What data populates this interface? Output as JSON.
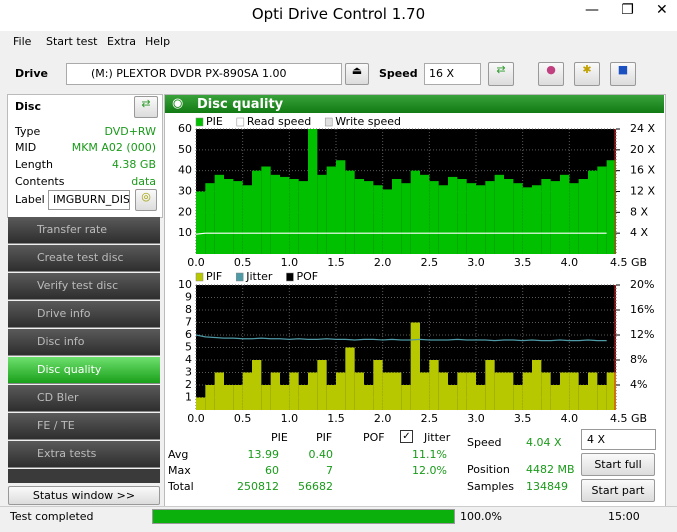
{
  "window": {
    "title": "Opti Drive Control 1.70"
  },
  "menu": [
    "File",
    "Start test",
    "Extra",
    "Help"
  ],
  "toolbar": {
    "drive_label": "Drive",
    "drive": "(M:)  PLEXTOR DVDR   PX-890SA 1.00",
    "speed_label": "Speed",
    "speed": "16 X"
  },
  "disc": {
    "title": "Disc",
    "rows": [
      {
        "name": "Type",
        "value": "DVD+RW"
      },
      {
        "name": "MID",
        "value": "MKM A02 (000)"
      },
      {
        "name": "Length",
        "value": "4.38 GB"
      },
      {
        "name": "Contents",
        "value": "data"
      }
    ],
    "label_name": "Label",
    "label_value": "IMGBURN_DIS"
  },
  "nav": [
    "Transfer rate",
    "Create test disc",
    "Verify test disc",
    "Drive info",
    "Disc info",
    "Disc quality",
    "CD Bler",
    "FE / TE",
    "Extra tests"
  ],
  "status_window": "Status window >>",
  "panel": {
    "title": "Disc quality",
    "charts": [
      {
        "type": "bar",
        "xlim": [
          0,
          4.5
        ],
        "xticks": [
          {
            "value": 0,
            "label": "0.0"
          },
          0.5,
          {
            "value": 1,
            "label": "1.0"
          },
          1.5,
          {
            "value": 2,
            "label": "2.0"
          },
          2.5,
          {
            "value": 3,
            "label": "3.0"
          },
          3.5,
          {
            "value": 4,
            "label": "4.0"
          },
          {
            "value": 4.5,
            "label": "4.5 GB"
          }
        ],
        "ylim": [
          0,
          60
        ],
        "yticks": [
          10,
          20,
          30,
          40,
          50,
          60
        ],
        "y2lim": [
          0,
          24
        ],
        "y2ticks": [
          {
            "value": 4,
            "label": "4 X"
          },
          {
            "value": 8,
            "label": "8 X"
          },
          {
            "value": 12,
            "label": "12 X"
          },
          {
            "value": 16,
            "label": "16 X"
          },
          {
            "value": 20,
            "label": "20 X"
          },
          {
            "value": 24,
            "label": "24 X"
          }
        ],
        "grid": true,
        "x": [
          0.0,
          0.1,
          0.2,
          0.3,
          0.4,
          0.5,
          0.6,
          0.7,
          0.8,
          0.9,
          1.0,
          1.1,
          1.2,
          1.3,
          1.4,
          1.5,
          1.6,
          1.7,
          1.8,
          1.9,
          2.0,
          2.1,
          2.2,
          2.3,
          2.4,
          2.5,
          2.6,
          2.7,
          2.8,
          2.9,
          3.0,
          3.1,
          3.2,
          3.3,
          3.4,
          3.5,
          3.6,
          3.7,
          3.8,
          3.9,
          4.0,
          4.1,
          4.2,
          4.3,
          4.4
        ],
        "series": [
          {
            "name": "PIE",
            "color": "#00c000",
            "kind": "bar",
            "values": [
              30,
              34,
              38,
              36,
              35,
              33,
              40,
              42,
              38,
              37,
              36,
              35,
              60,
              38,
              42,
              45,
              40,
              36,
              35,
              33,
              31,
              36,
              34,
              40,
              38,
              35,
              33,
              37,
              36,
              34,
              33,
              35,
              38,
              36,
              34,
              32,
              33,
              36,
              35,
              38,
              34,
              36,
              40,
              42,
              45
            ]
          },
          {
            "name": "Read speed",
            "color": "#ffffff",
            "kind": "line",
            "axis": "y2",
            "values": [
              3.8,
              4,
              4,
              4,
              4,
              4,
              4,
              4,
              4,
              4,
              4,
              4,
              4,
              4,
              4,
              4,
              4,
              4,
              4,
              4,
              4,
              4,
              4,
              4,
              4,
              4,
              4,
              4,
              4,
              4,
              4,
              4,
              4,
              4,
              4,
              4,
              4,
              4,
              4,
              4,
              4,
              4,
              4,
              4,
              4
            ]
          },
          {
            "name": "Write speed",
            "color": "#e0e0e0",
            "kind": "line",
            "axis": "y2",
            "values": [
              null,
              null,
              null,
              null,
              null,
              null,
              null,
              null,
              null,
              null,
              null,
              null,
              null,
              null,
              null,
              null,
              null,
              null,
              null,
              null,
              null,
              null,
              null,
              null,
              null,
              null,
              null,
              null,
              null,
              null,
              null,
              null,
              null,
              null,
              null,
              null,
              null,
              null,
              null,
              null,
              null,
              null,
              null,
              null,
              null
            ]
          }
        ]
      },
      {
        "type": "bar",
        "xlim": [
          0,
          4.5
        ],
        "xticks": [
          {
            "value": 0,
            "label": "0.0"
          },
          0.5,
          {
            "value": 1,
            "label": "1.0"
          },
          1.5,
          {
            "value": 2,
            "label": "2.0"
          },
          2.5,
          {
            "value": 3,
            "label": "3.0"
          },
          3.5,
          {
            "value": 4,
            "label": "4.0"
          },
          {
            "value": 4.5,
            "label": "4.5 GB"
          }
        ],
        "ylim": [
          0,
          10
        ],
        "yticks": [
          1,
          2,
          3,
          4,
          5,
          6,
          7,
          8,
          9,
          10
        ],
        "y2lim": [
          0,
          20
        ],
        "y2ticks": [
          {
            "value": 4,
            "label": "4%"
          },
          {
            "value": 8,
            "label": "8%"
          },
          {
            "value": 12,
            "label": "12%"
          },
          {
            "value": 16,
            "label": "16%"
          },
          {
            "value": 20,
            "label": "20%"
          }
        ],
        "grid": true,
        "x": [
          0.0,
          0.1,
          0.2,
          0.3,
          0.4,
          0.5,
          0.6,
          0.7,
          0.8,
          0.9,
          1.0,
          1.1,
          1.2,
          1.3,
          1.4,
          1.5,
          1.6,
          1.7,
          1.8,
          1.9,
          2.0,
          2.1,
          2.2,
          2.3,
          2.4,
          2.5,
          2.6,
          2.7,
          2.8,
          2.9,
          3.0,
          3.1,
          3.2,
          3.3,
          3.4,
          3.5,
          3.6,
          3.7,
          3.8,
          3.9,
          4.0,
          4.1,
          4.2,
          4.3,
          4.4
        ],
        "series": [
          {
            "name": "PIF",
            "color": "#b8c800",
            "kind": "bar",
            "values": [
              1,
              2,
              3,
              2,
              2,
              3,
              4,
              2,
              3,
              2,
              3,
              2,
              3,
              4,
              2,
              3,
              5,
              3,
              2,
              4,
              3,
              3,
              2,
              7,
              3,
              4,
              3,
              2,
              3,
              3,
              2,
              4,
              3,
              3,
              2,
              3,
              4,
              3,
              2,
              3,
              3,
              2,
              3,
              2,
              3
            ]
          },
          {
            "name": "Jitter",
            "color": "#4e9aa6",
            "kind": "line",
            "axis": "y2",
            "values": [
              12.0,
              11.7,
              11.6,
              11.5,
              11.5,
              11.4,
              11.4,
              11.5,
              11.4,
              11.4,
              11.3,
              11.4,
              11.3,
              11.3,
              11.4,
              11.3,
              11.3,
              11.2,
              11.3,
              11.3,
              11.2,
              11.3,
              11.2,
              11.2,
              11.3,
              11.2,
              11.2,
              11.2,
              11.3,
              11.2,
              11.2,
              11.2,
              11.1,
              11.2,
              11.2,
              11.1,
              11.2,
              11.1,
              11.1,
              11.2,
              11.1,
              11.1,
              11.2,
              11.1,
              11.1
            ]
          },
          {
            "name": "POF",
            "color": "#000000",
            "kind": "bar",
            "values": [
              null,
              null,
              null,
              null,
              null,
              null,
              null,
              null,
              null,
              null,
              null,
              null,
              null,
              null,
              null,
              null,
              null,
              null,
              null,
              null,
              null,
              null,
              null,
              null,
              null,
              null,
              null,
              null,
              null,
              null,
              null,
              null,
              null,
              null,
              null,
              null,
              null,
              null,
              null,
              null,
              null,
              null,
              null,
              null,
              null
            ]
          }
        ]
      }
    ],
    "stats": {
      "headers": [
        "PIE",
        "PIF",
        "POF",
        "Jitter"
      ],
      "rows": [
        {
          "label": "Avg",
          "pie": "13.99",
          "pif": "0.40",
          "jitter": "11.1%"
        },
        {
          "label": "Max",
          "pie": "60",
          "pif": "7",
          "jitter": "12.0%"
        },
        {
          "label": "Total",
          "pie": "250812",
          "pif": "56682"
        }
      ]
    },
    "info": {
      "speed_label": "Speed",
      "speed": "4.04 X",
      "position_label": "Position",
      "position": "4482 MB",
      "samples_label": "Samples",
      "samples": "134849"
    },
    "controls": {
      "speed": "4 X",
      "start_full": "Start full",
      "start_part": "Start part"
    }
  },
  "statusbar": {
    "text": "Test completed",
    "progress": "100.0%",
    "time": "15:00"
  }
}
